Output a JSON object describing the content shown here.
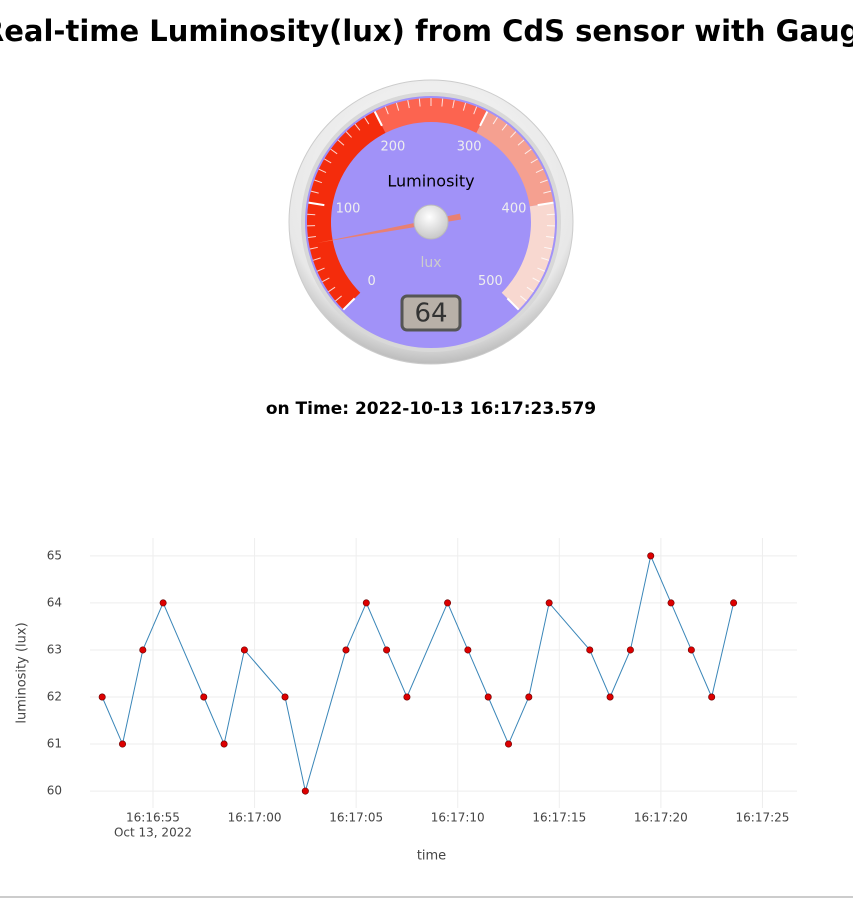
{
  "page": {
    "title": "Real-time Luminosity(lux) from CdS sensor with Gauge",
    "time_label": "on Time: 2022-10-13 16:17:23.579"
  },
  "chart_data": [
    {
      "type": "gauge",
      "title": "Luminosity",
      "units": "lux",
      "value": 64,
      "ylim": [
        0,
        500
      ],
      "yticks": [
        0,
        100,
        200,
        300,
        400,
        500
      ],
      "face_color": "#a192f8",
      "needle_color": "#f47c5c",
      "bands": [
        {
          "from": 0,
          "to": 200,
          "color": "#f42c0c"
        },
        {
          "from": 200,
          "to": 300,
          "color": "#fc6450"
        },
        {
          "from": 300,
          "to": 400,
          "color": "#f5a090"
        },
        {
          "from": 400,
          "to": 500,
          "color": "#f8d8d0"
        }
      ]
    },
    {
      "type": "line",
      "xlabel": "time",
      "ylabel": "luminosity (lux)",
      "color": "#3a86b8",
      "marker_color": "#dd0000",
      "x": [
        "2022-10-13T16:16:52.5",
        "2022-10-13T16:16:53.5",
        "2022-10-13T16:16:54.5",
        "2022-10-13T16:16:55.5",
        "2022-10-13T16:16:57.5",
        "2022-10-13T16:16:58.5",
        "2022-10-13T16:16:59.5",
        "2022-10-13T16:17:01.5",
        "2022-10-13T16:17:02.5",
        "2022-10-13T16:17:04.5",
        "2022-10-13T16:17:05.5",
        "2022-10-13T16:17:06.5",
        "2022-10-13T16:17:07.5",
        "2022-10-13T16:17:09.5",
        "2022-10-13T16:17:10.5",
        "2022-10-13T16:17:11.5",
        "2022-10-13T16:17:12.5",
        "2022-10-13T16:17:13.5",
        "2022-10-13T16:17:14.5",
        "2022-10-13T16:17:16.5",
        "2022-10-13T16:17:17.5",
        "2022-10-13T16:17:18.5",
        "2022-10-13T16:17:19.5",
        "2022-10-13T16:17:20.5",
        "2022-10-13T16:17:21.5",
        "2022-10-13T16:17:22.5",
        "2022-10-13T16:17:23.579"
      ],
      "values": [
        62,
        61,
        63,
        64,
        62,
        61,
        63,
        62,
        60,
        63,
        64,
        63,
        62,
        64,
        63,
        62,
        61,
        62,
        64,
        63,
        62,
        63,
        65,
        64,
        63,
        62,
        64
      ],
      "xlim": [
        "2022-10-13T16:16:51.9",
        "2022-10-13T16:17:26.7"
      ],
      "xticks": [
        {
          "value": "2022-10-13T16:16:55",
          "label": "16:16:55"
        },
        {
          "value": "2022-10-13T16:17:00",
          "label": "16:17:00"
        },
        {
          "value": "2022-10-13T16:17:05",
          "label": "16:17:05"
        },
        {
          "value": "2022-10-13T16:17:10",
          "label": "16:17:10"
        },
        {
          "value": "2022-10-13T16:17:15",
          "label": "16:17:15"
        },
        {
          "value": "2022-10-13T16:17:20",
          "label": "16:17:20"
        },
        {
          "value": "2022-10-13T16:17:25",
          "label": "16:17:25"
        }
      ],
      "xtick_sublabel": "Oct 13, 2022",
      "ylim": [
        59.64,
        65.38
      ],
      "yticks": [
        60,
        61,
        62,
        63,
        64,
        65
      ],
      "grid": true
    }
  ]
}
